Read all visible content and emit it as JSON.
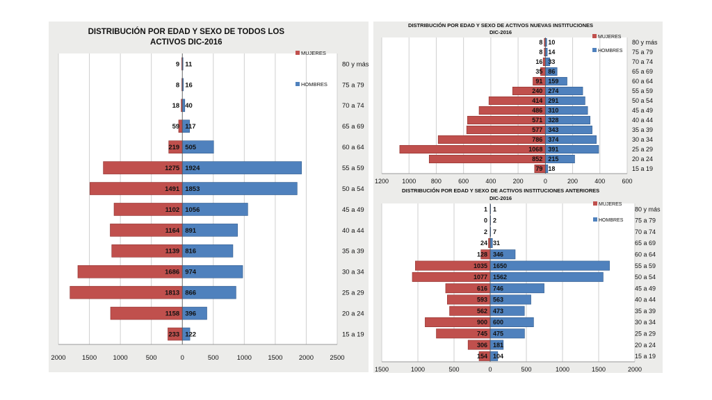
{
  "colors": {
    "mujeres": "#c0504d",
    "hombres": "#4f81bd",
    "grid": "#cfcfcf",
    "panel_bg": "#ececea",
    "plot_bg": "#ffffff"
  },
  "chart_data": [
    {
      "type": "bar",
      "orientation": "horizontal-population-pyramid",
      "title_lines": [
        "DISTRIBUCIÓN POR EDAD Y SEXO DE TODOS LOS",
        "ACTIVOS DIC-2016"
      ],
      "categories": [
        "80 y más",
        "75 a 79",
        "70 a 74",
        "65 a 69",
        "60 a 64",
        "55 a 59",
        "50 a 54",
        "45 a 49",
        "40 a 44",
        "35 a 39",
        "30 a 34",
        "25 a 29",
        "20 a 24",
        "15 a 19"
      ],
      "series": [
        {
          "name": "MUJERES",
          "values": [
            9,
            8,
            18,
            59,
            219,
            1275,
            1491,
            1102,
            1164,
            1139,
            1686,
            1813,
            1158,
            233
          ]
        },
        {
          "name": "HOMBRES",
          "values": [
            11,
            16,
            40,
            117,
            505,
            1924,
            1853,
            1056,
            891,
            816,
            974,
            866,
            396,
            122
          ]
        }
      ],
      "x_ticks": [
        "2000",
        "1500",
        "1000",
        "500",
        "0",
        "500",
        "1000",
        "1500",
        "2000",
        "2500"
      ],
      "xlim": [
        -2000,
        2500
      ],
      "legend": "top-right"
    },
    {
      "type": "bar",
      "orientation": "horizontal-population-pyramid",
      "title_lines": [
        "DISTRIBUCIÓN POR EDAD Y SEXO DE ACTIVOS NUEVAS INSTITUCIONES",
        "DIC-2016"
      ],
      "categories": [
        "80 y más",
        "75 a 79",
        "70 a 74",
        "65 a 69",
        "60 a 64",
        "55 a 59",
        "50 a 54",
        "45 a 49",
        "40 a 44",
        "35 a 39",
        "30 a 34",
        "25 a 29",
        "20 a 24",
        "15 a 19"
      ],
      "series": [
        {
          "name": "MUJERES",
          "values": [
            8,
            8,
            16,
            35,
            91,
            240,
            414,
            486,
            571,
            577,
            786,
            1068,
            852,
            79
          ]
        },
        {
          "name": "HOMBRES",
          "values": [
            10,
            14,
            33,
            86,
            159,
            274,
            291,
            310,
            328,
            343,
            374,
            391,
            215,
            18
          ]
        }
      ],
      "x_ticks": [
        "1200",
        "1000",
        "800",
        "600",
        "400",
        "200",
        "0",
        "200",
        "400",
        "600"
      ],
      "xlim": [
        -1200,
        600
      ],
      "legend": "top-right"
    },
    {
      "type": "bar",
      "orientation": "horizontal-population-pyramid",
      "title_lines": [
        "DISTRIBUCIÓN POR EDAD Y SEXO DE ACTIVOS INSTITUCIONES ANTERIORES",
        "DIC-2016"
      ],
      "categories": [
        "80 y más",
        "75 a 79",
        "70 a 74",
        "65 a 69",
        "60 a 64",
        "55 a 59",
        "50 a 54",
        "45 a 49",
        "40 a 44",
        "35 a 39",
        "30 a 34",
        "25 a 29",
        "20 a 24",
        "15 a 19"
      ],
      "series": [
        {
          "name": "MUJERES",
          "values": [
            1,
            0,
            2,
            24,
            128,
            1035,
            1077,
            616,
            593,
            562,
            900,
            745,
            306,
            154
          ]
        },
        {
          "name": "HOMBRES",
          "values": [
            1,
            2,
            7,
            31,
            346,
            1650,
            1562,
            746,
            563,
            473,
            600,
            475,
            181,
            104
          ]
        }
      ],
      "x_ticks": [
        "1500",
        "1000",
        "500",
        "0",
        "500",
        "1000",
        "1500",
        "2000"
      ],
      "xlim": [
        -1500,
        2000
      ],
      "legend": "top-right"
    }
  ]
}
